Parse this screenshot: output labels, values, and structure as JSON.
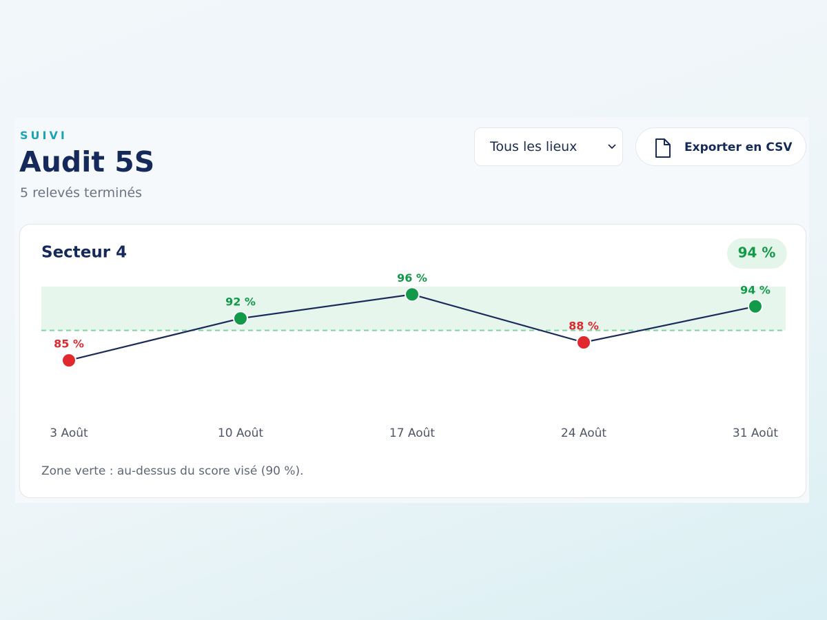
{
  "header": {
    "eyebrow": "SUIVI",
    "title": "Audit 5S",
    "subtitle": "5 relevés terminés"
  },
  "controls": {
    "location_select": "Tous les lieux",
    "export_button": "Exporter en CSV"
  },
  "chart_data": {
    "type": "line",
    "title": "Secteur 4",
    "badge": "94 %",
    "categories": [
      "3 Août",
      "10 Août",
      "17 Août",
      "24 Août",
      "31 Août"
    ],
    "values": [
      85,
      92,
      96,
      88,
      94
    ],
    "value_labels": [
      "85 %",
      "92 %",
      "96 %",
      "88 %",
      "94 %"
    ],
    "target": 90,
    "ylim": [
      78,
      98
    ],
    "color": "#1b2a5a",
    "above_color": "#12994a",
    "below_color": "#e0292f",
    "zone_color": "#e6f6ec",
    "note": "Zone verte : au-dessus du score visé (90 %)."
  }
}
